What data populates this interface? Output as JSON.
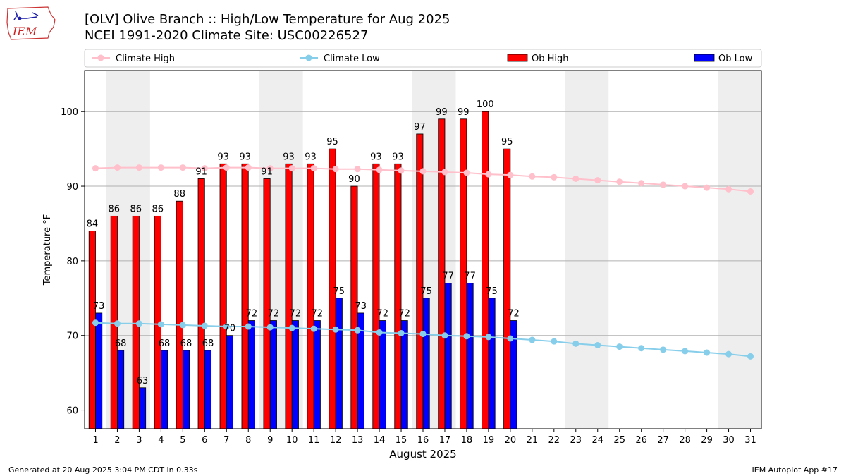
{
  "header": {
    "title_line1": "[OLV] Olive Branch :: High/Low Temperature for Aug 2025",
    "title_line2": "NCEI 1991-2020 Climate Site: USC00226527"
  },
  "logo": {
    "text": "IEM"
  },
  "footer": {
    "generated": "Generated at 20 Aug 2025 3:04 PM CDT in 0.33s",
    "app": "IEM Autoplot App #17"
  },
  "chart_data": {
    "type": "bar",
    "xlabel": "August 2025",
    "ylabel": "Temperature °F",
    "ylim": [
      57.5,
      105.5
    ],
    "xlim": [
      0.5,
      31.5
    ],
    "yticks": [
      60,
      70,
      80,
      90,
      100
    ],
    "days": [
      1,
      2,
      3,
      4,
      5,
      6,
      7,
      8,
      9,
      10,
      11,
      12,
      13,
      14,
      15,
      16,
      17,
      18,
      19,
      20,
      21,
      22,
      23,
      24,
      25,
      26,
      27,
      28,
      29,
      30,
      31
    ],
    "weekend_days": [
      [
        2,
        3
      ],
      [
        9,
        10
      ],
      [
        16,
        17
      ],
      [
        23,
        24
      ],
      [
        30,
        31
      ]
    ],
    "grid": "horizontal",
    "legend_placement": "top",
    "series": [
      {
        "name": "Climate High",
        "kind": "line",
        "color": "#ffc0cb",
        "values": [
          92.4,
          92.5,
          92.5,
          92.5,
          92.5,
          92.4,
          92.5,
          92.5,
          92.4,
          92.4,
          92.4,
          92.3,
          92.3,
          92.2,
          92.1,
          92.0,
          91.9,
          91.8,
          91.6,
          91.5,
          91.3,
          91.2,
          91.0,
          90.8,
          90.6,
          90.4,
          90.2,
          90.0,
          89.8,
          89.6,
          89.3
        ]
      },
      {
        "name": "Climate Low",
        "kind": "line",
        "color": "#87ceeb",
        "values": [
          71.7,
          71.6,
          71.6,
          71.5,
          71.4,
          71.3,
          71.2,
          71.2,
          71.1,
          71.0,
          70.9,
          70.8,
          70.7,
          70.4,
          70.3,
          70.2,
          70.0,
          69.9,
          69.8,
          69.6,
          69.4,
          69.2,
          68.9,
          68.7,
          68.5,
          68.3,
          68.1,
          67.9,
          67.7,
          67.5,
          67.2
        ]
      },
      {
        "name": "Ob High",
        "kind": "bar",
        "color": "#ff0000",
        "values": [
          84,
          86,
          86,
          86,
          88,
          91,
          93,
          93,
          91,
          93,
          93,
          95,
          90,
          93,
          93,
          97,
          99,
          99,
          100,
          95
        ]
      },
      {
        "name": "Ob Low",
        "kind": "bar",
        "color": "#0000ff",
        "values": [
          73,
          68,
          63,
          68,
          68,
          68,
          70,
          72,
          72,
          72,
          72,
          75,
          73,
          72,
          72,
          75,
          77,
          77,
          75,
          72
        ]
      }
    ]
  }
}
